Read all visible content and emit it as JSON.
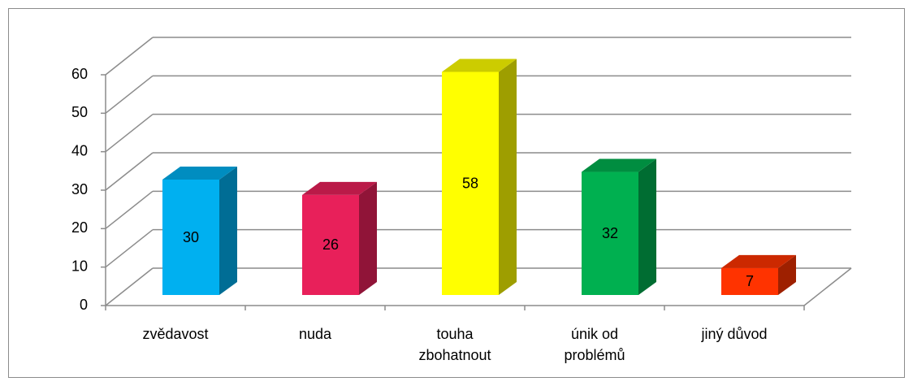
{
  "chart_data": {
    "type": "bar3d",
    "categories": [
      "zvědavost",
      "nuda",
      "touha zbohatnout",
      "únik od problémů",
      "jiný důvod"
    ],
    "values": [
      30,
      26,
      58,
      32,
      7
    ],
    "colors": [
      "#00b0f0",
      "#e8205a",
      "#ffff00",
      "#00b050",
      "#ff3300"
    ],
    "ylim": [
      0,
      60
    ],
    "yticks": [
      0,
      10,
      20,
      30,
      40,
      50,
      60
    ],
    "grid": true
  }
}
